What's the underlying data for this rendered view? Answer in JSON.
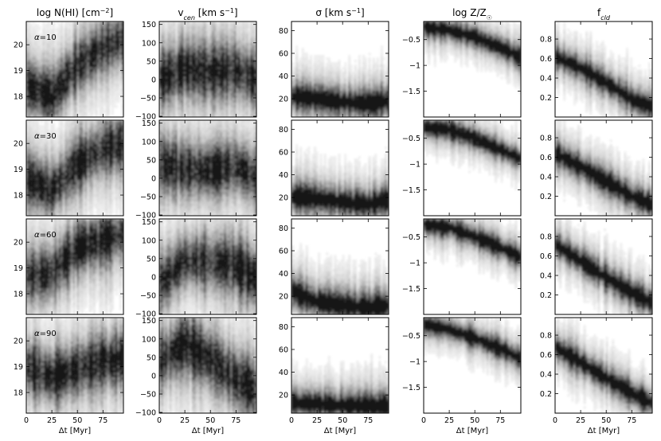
{
  "chart_data": {
    "type": "heatmap",
    "description_axes": "4 rows (alpha values) x 5 columns (quantities); density histograms vs time",
    "x_axis": {
      "label": "Δt [Myr]",
      "lim": [
        0,
        95
      ],
      "ticks": [
        0,
        25,
        50,
        75
      ]
    },
    "rows": [
      "α=10",
      "α=30",
      "α=60",
      "α=90"
    ],
    "columns": [
      {
        "title": "log N(HI) [cm⁻²]",
        "ylim": [
          17.2,
          20.9
        ],
        "yticks": [
          18,
          19,
          20
        ]
      },
      {
        "title": "v_cen [km s⁻¹]",
        "ylim": [
          -102,
          158
        ],
        "yticks": [
          -100,
          -50,
          0,
          50,
          100,
          150
        ]
      },
      {
        "title": "σ [km s⁻¹]",
        "ylim": [
          4,
          88
        ],
        "yticks": [
          20,
          40,
          60,
          80
        ]
      },
      {
        "title": "log Z/Z☉",
        "ylim": [
          -2.0,
          -0.15
        ],
        "yticks": [
          -1.5,
          -1.0,
          -0.5
        ]
      },
      {
        "title": "f_cld",
        "ylim": [
          0.0,
          0.98
        ],
        "yticks": [
          0.2,
          0.4,
          0.6,
          0.8
        ]
      }
    ],
    "density_ridge_estimates": {
      "logNHI": {
        "alpha10": {
          "x": [
            0,
            25,
            50,
            75,
            95
          ],
          "y": [
            18.4,
            18.0,
            19.2,
            19.9,
            20.2
          ]
        },
        "alpha30": {
          "x": [
            0,
            25,
            50,
            75,
            95
          ],
          "y": [
            18.6,
            18.2,
            19.2,
            19.8,
            20.0
          ]
        },
        "alpha60": {
          "x": [
            0,
            25,
            50,
            75,
            95
          ],
          "y": [
            18.7,
            18.8,
            19.8,
            20.1,
            20.3
          ]
        },
        "alpha90": {
          "x": [
            0,
            25,
            50,
            75,
            95
          ],
          "y": [
            19.0,
            18.6,
            18.9,
            19.2,
            19.3
          ]
        }
      },
      "vcen": {
        "alpha10": {
          "x": [
            0,
            25,
            50,
            75,
            95
          ],
          "y": [
            0,
            30,
            20,
            25,
            0
          ]
        },
        "alpha30": {
          "x": [
            0,
            25,
            50,
            75,
            95
          ],
          "y": [
            35,
            25,
            20,
            35,
            0
          ]
        },
        "alpha60": {
          "x": [
            0,
            25,
            50,
            75,
            95
          ],
          "y": [
            -20,
            45,
            40,
            30,
            -5
          ]
        },
        "alpha90": {
          "x": [
            0,
            25,
            50,
            75,
            95
          ],
          "y": [
            40,
            85,
            45,
            -10,
            -40
          ]
        }
      },
      "sigma": {
        "alpha10": {
          "x": [
            0,
            25,
            50,
            75,
            95
          ],
          "y": [
            22,
            20,
            17,
            16,
            18
          ]
        },
        "alpha30": {
          "x": [
            0,
            25,
            50,
            75,
            95
          ],
          "y": [
            21,
            19,
            16,
            14,
            18
          ]
        },
        "alpha60": {
          "x": [
            0,
            25,
            50,
            75,
            95
          ],
          "y": [
            25,
            15,
            12,
            10,
            12
          ]
        },
        "alpha90": {
          "x": [
            0,
            25,
            50,
            75,
            95
          ],
          "y": [
            13,
            12,
            11,
            10,
            9
          ]
        }
      },
      "logZ": {
        "alpha10": {
          "x": [
            0,
            25,
            50,
            75,
            95
          ],
          "y": [
            -0.25,
            -0.32,
            -0.45,
            -0.65,
            -0.85
          ]
        },
        "alpha30": {
          "x": [
            0,
            25,
            50,
            75,
            95
          ],
          "y": [
            -0.28,
            -0.34,
            -0.5,
            -0.72,
            -0.9
          ]
        },
        "alpha60": {
          "x": [
            0,
            25,
            50,
            75,
            95
          ],
          "y": [
            -0.25,
            -0.32,
            -0.5,
            -0.7,
            -0.9
          ]
        },
        "alpha90": {
          "x": [
            0,
            25,
            50,
            75,
            95
          ],
          "y": [
            -0.28,
            -0.38,
            -0.55,
            -0.75,
            -0.95
          ]
        }
      },
      "fcld": {
        "alpha10": {
          "x": [
            0,
            25,
            50,
            75,
            95
          ],
          "y": [
            0.62,
            0.5,
            0.35,
            0.18,
            0.1
          ]
        },
        "alpha30": {
          "x": [
            0,
            25,
            50,
            75,
            95
          ],
          "y": [
            0.64,
            0.5,
            0.35,
            0.2,
            0.11
          ]
        },
        "alpha60": {
          "x": [
            0,
            25,
            50,
            75,
            95
          ],
          "y": [
            0.72,
            0.55,
            0.38,
            0.22,
            0.12
          ]
        },
        "alpha90": {
          "x": [
            0,
            25,
            50,
            75,
            95
          ],
          "y": [
            0.68,
            0.52,
            0.36,
            0.2,
            0.1
          ]
        }
      }
    },
    "spread_estimates": {
      "logNHI": 0.6,
      "vcen": 45,
      "sigma": 8,
      "logZ": 0.12,
      "fcld": 0.08
    }
  }
}
